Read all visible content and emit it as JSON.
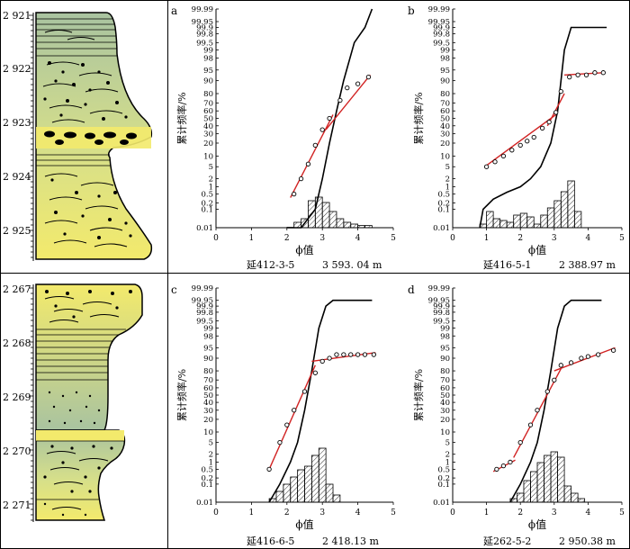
{
  "figure": {
    "border_color": "#000000",
    "fill_color": "#f3ea6c",
    "fit_line_color": "#d12222"
  },
  "columns": [
    {
      "depth_labels": [
        "2 921",
        "2 922",
        "2 923",
        "2 924",
        "2 925"
      ]
    },
    {
      "depth_labels": [
        "2 267",
        "2 268",
        "2 269",
        "2 270",
        "2 271"
      ]
    }
  ],
  "chart_data": [
    {
      "type": "probability-plot",
      "panel": "a",
      "caption_sample": "延412-3-5",
      "caption_depth": "3 593. 04 m",
      "ylabel": "累计频率/%",
      "xlabel": "ϕ值",
      "xlim": [
        0,
        5
      ],
      "x_ticks": [
        "0",
        "1",
        "2",
        "3",
        "4",
        "5"
      ],
      "y_ticks": [
        "0.01",
        "0.1",
        "0.2",
        "0.5",
        "1",
        "2",
        "5",
        "10",
        "20",
        "30",
        "40",
        "50",
        "60",
        "70",
        "80",
        "90",
        "95",
        "98",
        "99",
        "99.5",
        "99.8",
        "99.9",
        "99.95",
        "99.99"
      ],
      "points": [
        [
          2.2,
          0.5
        ],
        [
          2.4,
          2.0
        ],
        [
          2.6,
          6.0
        ],
        [
          2.8,
          18.0
        ],
        [
          3.0,
          35.0
        ],
        [
          3.2,
          50.0
        ],
        [
          3.5,
          73.0
        ],
        [
          3.7,
          85.0
        ],
        [
          4.0,
          88.0
        ],
        [
          4.3,
          92.0
        ]
      ],
      "fit_lines": [
        [
          [
            2.1,
            0.35
          ],
          [
            3.3,
            55.0
          ]
        ],
        [
          [
            3.1,
            35.0
          ],
          [
            4.35,
            93.0
          ]
        ]
      ],
      "cumulative_curve": [
        [
          2.0,
          0.01
        ],
        [
          2.4,
          0.01
        ],
        [
          2.8,
          0.1
        ],
        [
          3.0,
          2.0
        ],
        [
          3.2,
          20.0
        ],
        [
          3.4,
          60.0
        ],
        [
          3.6,
          90.0
        ],
        [
          3.9,
          99.5
        ],
        [
          4.2,
          99.9
        ],
        [
          4.4,
          99.99
        ]
      ],
      "histogram": {
        "start": 2.0,
        "width": 0.2,
        "heights": [
          0.01,
          0.15,
          0.25,
          0.75,
          0.85,
          0.7,
          0.45,
          0.25,
          0.15,
          0.1,
          0.06,
          0.06
        ]
      }
    },
    {
      "type": "probability-plot",
      "panel": "b",
      "caption_sample": "延416-5-1",
      "caption_depth": "2 388.97 m",
      "ylabel": "累计频率/%",
      "xlabel": "ϕ值",
      "xlim": [
        0,
        5
      ],
      "x_ticks": [
        "0",
        "1",
        "2",
        "3",
        "4",
        "5"
      ],
      "y_ticks": [
        "0.01",
        "0.1",
        "0.2",
        "0.5",
        "1",
        "2",
        "5",
        "10",
        "20",
        "30",
        "40",
        "50",
        "60",
        "70",
        "80",
        "90",
        "95",
        "98",
        "99",
        "99.5",
        "99.8",
        "99.9",
        "99.95",
        "99.99"
      ],
      "points": [
        [
          1.0,
          5.0
        ],
        [
          1.25,
          7.0
        ],
        [
          1.5,
          10.0
        ],
        [
          1.75,
          14.0
        ],
        [
          2.0,
          18.0
        ],
        [
          2.2,
          22.0
        ],
        [
          2.4,
          26.0
        ],
        [
          2.65,
          37.0
        ],
        [
          2.85,
          45.0
        ],
        [
          3.05,
          58.0
        ],
        [
          3.2,
          82.0
        ],
        [
          3.45,
          92.0
        ],
        [
          3.7,
          93.0
        ],
        [
          3.95,
          93.0
        ],
        [
          4.2,
          94.0
        ],
        [
          4.45,
          94.0
        ]
      ],
      "fit_lines": [
        [
          [
            0.95,
            5.0
          ],
          [
            3.05,
            55.0
          ]
        ],
        [
          [
            2.8,
            40.0
          ],
          [
            3.3,
            80.0
          ]
        ],
        [
          [
            3.3,
            93.0
          ],
          [
            4.5,
            94.0
          ]
        ]
      ],
      "cumulative_curve": [
        [
          0.8,
          0.01
        ],
        [
          0.9,
          0.1
        ],
        [
          1.2,
          0.3
        ],
        [
          1.6,
          0.6
        ],
        [
          2.0,
          1.0
        ],
        [
          2.3,
          2.0
        ],
        [
          2.6,
          5.0
        ],
        [
          2.9,
          20.0
        ],
        [
          3.1,
          60.0
        ],
        [
          3.3,
          99.0
        ],
        [
          3.5,
          99.9
        ],
        [
          4.55,
          99.9
        ]
      ],
      "histogram": {
        "start": 0.8,
        "width": 0.2,
        "heights": [
          0.1,
          0.45,
          0.25,
          0.2,
          0.15,
          0.35,
          0.4,
          0.3,
          0.1,
          0.35,
          0.55,
          0.75,
          1.0,
          1.3,
          0.45
        ]
      }
    },
    {
      "type": "probability-plot",
      "panel": "c",
      "caption_sample": "延416-6-5",
      "caption_depth": "2 418.13 m",
      "ylabel": "累计频率/%",
      "xlabel": "ϕ值",
      "xlim": [
        0,
        5
      ],
      "x_ticks": [
        "0",
        "1",
        "2",
        "3",
        "4",
        "5"
      ],
      "y_ticks": [
        "0.01",
        "0.1",
        "0.2",
        "0.5",
        "1",
        "2",
        "5",
        "10",
        "20",
        "30",
        "40",
        "50",
        "60",
        "70",
        "80",
        "90",
        "95",
        "98",
        "99",
        "99.5",
        "99.8",
        "99.9",
        "99.95",
        "99.99"
      ],
      "points": [
        [
          1.5,
          0.5
        ],
        [
          1.8,
          5.0
        ],
        [
          2.0,
          15.0
        ],
        [
          2.2,
          30.0
        ],
        [
          2.5,
          55.0
        ],
        [
          2.8,
          78.0
        ],
        [
          3.0,
          88.0
        ],
        [
          3.2,
          90.0
        ],
        [
          3.4,
          92.0
        ],
        [
          3.6,
          92.0
        ],
        [
          3.8,
          92.0
        ],
        [
          4.0,
          92.0
        ],
        [
          4.2,
          92.0
        ],
        [
          4.45,
          92.0
        ]
      ],
      "fit_lines": [
        [
          [
            1.5,
            0.5
          ],
          [
            2.8,
            85.0
          ]
        ],
        [
          [
            2.7,
            88.0
          ],
          [
            4.5,
            93.0
          ]
        ]
      ],
      "cumulative_curve": [
        [
          1.5,
          0.01
        ],
        [
          1.8,
          0.1
        ],
        [
          2.1,
          1.0
        ],
        [
          2.3,
          5.0
        ],
        [
          2.5,
          30.0
        ],
        [
          2.7,
          80.0
        ],
        [
          2.9,
          99.0
        ],
        [
          3.1,
          99.9
        ],
        [
          3.3,
          99.95
        ],
        [
          4.4,
          99.95
        ]
      ],
      "histogram": {
        "start": 1.5,
        "width": 0.2,
        "heights": [
          0.1,
          0.3,
          0.5,
          0.7,
          0.9,
          1.0,
          1.3,
          1.5,
          0.5,
          0.2
        ]
      }
    },
    {
      "type": "probability-plot",
      "panel": "d",
      "caption_sample": "延262-5-2",
      "caption_depth": "2 950.38 m",
      "ylabel": "累计频率/%",
      "xlabel": "ϕ值",
      "xlim": [
        0,
        5
      ],
      "x_ticks": [
        "0",
        "1",
        "2",
        "3",
        "4",
        "5"
      ],
      "y_ticks": [
        "0.01",
        "0.1",
        "0.2",
        "0.5",
        "1",
        "2",
        "5",
        "10",
        "20",
        "30",
        "40",
        "50",
        "60",
        "70",
        "80",
        "90",
        "95",
        "98",
        "99",
        "99.5",
        "99.8",
        "99.9",
        "99.95",
        "99.99"
      ],
      "points": [
        [
          1.3,
          0.5
        ],
        [
          1.5,
          0.7
        ],
        [
          1.7,
          1.0
        ],
        [
          2.0,
          5.0
        ],
        [
          2.3,
          15.0
        ],
        [
          2.5,
          30.0
        ],
        [
          2.8,
          55.0
        ],
        [
          3.0,
          70.0
        ],
        [
          3.2,
          85.0
        ],
        [
          3.5,
          87.0
        ],
        [
          3.8,
          90.0
        ],
        [
          4.0,
          91.0
        ],
        [
          4.3,
          92.0
        ],
        [
          4.75,
          94.0
        ]
      ],
      "fit_lines": [
        [
          [
            1.2,
            0.4
          ],
          [
            1.85,
            1.2
          ]
        ],
        [
          [
            1.8,
            1.5
          ],
          [
            3.2,
            82.0
          ]
        ],
        [
          [
            3.0,
            80.0
          ],
          [
            4.8,
            95.0
          ]
        ]
      ],
      "cumulative_curve": [
        [
          1.7,
          0.01
        ],
        [
          2.0,
          0.1
        ],
        [
          2.3,
          1.0
        ],
        [
          2.5,
          5.0
        ],
        [
          2.7,
          30.0
        ],
        [
          2.9,
          80.0
        ],
        [
          3.1,
          99.0
        ],
        [
          3.3,
          99.9
        ],
        [
          3.5,
          99.95
        ],
        [
          4.4,
          99.95
        ]
      ],
      "histogram": {
        "start": 1.7,
        "width": 0.2,
        "heights": [
          0.1,
          0.25,
          0.6,
          0.85,
          1.1,
          1.3,
          1.4,
          1.25,
          0.45,
          0.25,
          0.1
        ]
      }
    }
  ]
}
